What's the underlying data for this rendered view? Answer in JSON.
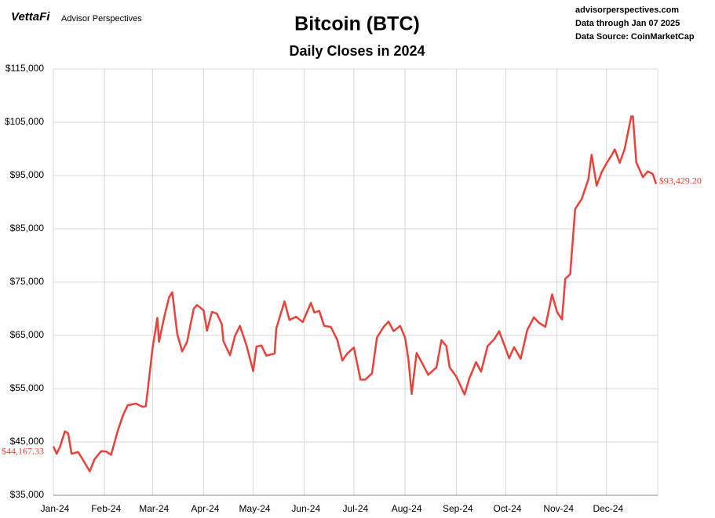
{
  "chart_data": {
    "type": "line",
    "brand": "VettaFi",
    "brand_sub": "Advisor Perspectives",
    "title": "Bitcoin (BTC)",
    "subtitle": "Daily Closes in 2024",
    "source_lines": [
      "advisorperspectives.com",
      "Data through Jan 07 2025",
      "Data Source: CoinMarketCap"
    ],
    "grid": true,
    "xlim": [
      "2024-01-01",
      "2025-01-01"
    ],
    "xticks": [
      {
        "value": "2024-01-01",
        "label": "Jan-24"
      },
      {
        "value": "2024-02-01",
        "label": "Feb-24"
      },
      {
        "value": "2024-03-01",
        "label": "Mar-24"
      },
      {
        "value": "2024-04-01",
        "label": "Apr-24"
      },
      {
        "value": "2024-05-01",
        "label": "May-24"
      },
      {
        "value": "2024-06-01",
        "label": "Jun-24"
      },
      {
        "value": "2024-07-01",
        "label": "Jul-24"
      },
      {
        "value": "2024-08-01",
        "label": "Aug-24"
      },
      {
        "value": "2024-09-01",
        "label": "Sep-24"
      },
      {
        "value": "2024-10-01",
        "label": "Oct-24"
      },
      {
        "value": "2024-11-01",
        "label": "Nov-24"
      },
      {
        "value": "2024-12-01",
        "label": "Dec-24"
      }
    ],
    "ylim": [
      35000,
      115000
    ],
    "yticks": [
      {
        "value": 35000,
        "label": "$35,000"
      },
      {
        "value": 45000,
        "label": "$45,000"
      },
      {
        "value": 55000,
        "label": "$55,000"
      },
      {
        "value": 65000,
        "label": "$65,000"
      },
      {
        "value": 75000,
        "label": "$75,000"
      },
      {
        "value": 85000,
        "label": "$85,000"
      },
      {
        "value": 95000,
        "label": "$95,000"
      },
      {
        "value": 105000,
        "label": "$105,000"
      },
      {
        "value": 115000,
        "label": "$115,000"
      }
    ],
    "x": [
      "2024-01-01",
      "2024-01-03",
      "2024-01-05",
      "2024-01-08",
      "2024-01-10",
      "2024-01-12",
      "2024-01-16",
      "2024-01-19",
      "2024-01-23",
      "2024-01-26",
      "2024-01-30",
      "2024-02-02",
      "2024-02-05",
      "2024-02-09",
      "2024-02-12",
      "2024-02-15",
      "2024-02-20",
      "2024-02-24",
      "2024-02-26",
      "2024-02-28",
      "2024-03-01",
      "2024-03-04",
      "2024-03-05",
      "2024-03-08",
      "2024-03-11",
      "2024-03-13",
      "2024-03-16",
      "2024-03-19",
      "2024-03-22",
      "2024-03-26",
      "2024-03-28",
      "2024-04-01",
      "2024-04-03",
      "2024-04-06",
      "2024-04-09",
      "2024-04-12",
      "2024-04-13",
      "2024-04-17",
      "2024-04-20",
      "2024-04-23",
      "2024-04-27",
      "2024-05-01",
      "2024-05-03",
      "2024-05-06",
      "2024-05-09",
      "2024-05-14",
      "2024-05-15",
      "2024-05-20",
      "2024-05-23",
      "2024-05-27",
      "2024-05-31",
      "2024-06-05",
      "2024-06-07",
      "2024-06-10",
      "2024-06-13",
      "2024-06-17",
      "2024-06-21",
      "2024-06-24",
      "2024-06-27",
      "2024-07-01",
      "2024-07-05",
      "2024-07-08",
      "2024-07-12",
      "2024-07-15",
      "2024-07-19",
      "2024-07-22",
      "2024-07-25",
      "2024-07-29",
      "2024-08-01",
      "2024-08-03",
      "2024-08-05",
      "2024-08-08",
      "2024-08-12",
      "2024-08-15",
      "2024-08-20",
      "2024-08-23",
      "2024-08-26",
      "2024-08-28",
      "2024-09-01",
      "2024-09-06",
      "2024-09-09",
      "2024-09-13",
      "2024-09-16",
      "2024-09-20",
      "2024-09-24",
      "2024-09-27",
      "2024-09-30",
      "2024-10-03",
      "2024-10-06",
      "2024-10-10",
      "2024-10-14",
      "2024-10-18",
      "2024-10-21",
      "2024-10-25",
      "2024-10-29",
      "2024-11-01",
      "2024-11-04",
      "2024-11-06",
      "2024-11-09",
      "2024-11-12",
      "2024-11-16",
      "2024-11-20",
      "2024-11-22",
      "2024-11-25",
      "2024-11-28",
      "2024-12-01",
      "2024-12-04",
      "2024-12-06",
      "2024-12-09",
      "2024-12-12",
      "2024-12-16",
      "2024-12-17",
      "2024-12-19",
      "2024-12-23",
      "2024-12-26",
      "2024-12-29",
      "2024-12-31"
    ],
    "series": [
      {
        "name": "BTC",
        "color": "#e8423b",
        "values": [
          44167.33,
          42800,
          44100,
          47000,
          46600,
          42800,
          43100,
          41600,
          39500,
          41800,
          43300,
          43200,
          42600,
          47100,
          49900,
          51900,
          52200,
          51600,
          51700,
          57000,
          62400,
          68300,
          63800,
          68300,
          72100,
          73100,
          65300,
          62000,
          63800,
          70000,
          70700,
          69700,
          65900,
          69400,
          69100,
          67100,
          63900,
          61300,
          64900,
          66800,
          63100,
          58300,
          62900,
          63100,
          61200,
          61600,
          66300,
          71400,
          67900,
          68500,
          67500,
          71100,
          69300,
          69600,
          66800,
          66600,
          64100,
          60300,
          61600,
          62700,
          56700,
          56700,
          57900,
          64600,
          66600,
          67600,
          65800,
          66800,
          64600,
          60600,
          54000,
          61700,
          59400,
          57600,
          59000,
          64100,
          63000,
          59000,
          57300,
          53900,
          57000,
          60000,
          58200,
          63000,
          64300,
          65800,
          63300,
          60700,
          62800,
          60600,
          66000,
          68400,
          67400,
          66600,
          72700,
          69400,
          68000,
          75600,
          76500,
          88700,
          90600,
          94300,
          98900,
          93100,
          95600,
          97300,
          98800,
          99900,
          97400,
          100000,
          106100,
          106100,
          97500,
          94700,
          95800,
          95300,
          93429.2
        ],
        "value_labels": [
          "$44,167.33",
          null,
          null,
          null,
          null,
          null,
          null,
          null,
          null,
          null,
          null,
          null,
          null,
          null,
          null,
          null,
          null,
          null,
          null,
          null,
          null,
          null,
          null,
          null,
          null,
          null,
          null,
          null,
          null,
          null,
          null,
          null,
          null,
          null,
          null,
          null,
          null,
          null,
          null,
          null,
          null,
          null,
          null,
          null,
          null,
          null,
          null,
          null,
          null,
          null,
          null,
          null,
          null,
          null,
          null,
          null,
          null,
          null,
          null,
          null,
          null,
          null,
          null,
          null,
          null,
          null,
          null,
          null,
          null,
          null,
          null,
          null,
          null,
          null,
          null,
          null,
          null,
          null,
          null,
          null,
          null,
          null,
          null,
          null,
          null,
          null,
          null,
          null,
          null,
          null,
          null,
          null,
          null,
          null,
          null,
          null,
          null,
          null,
          null,
          null,
          null,
          null,
          null,
          null,
          null,
          null,
          null,
          null,
          null,
          null,
          null,
          null,
          null,
          null,
          null,
          null,
          "$93,429.20"
        ]
      }
    ]
  }
}
